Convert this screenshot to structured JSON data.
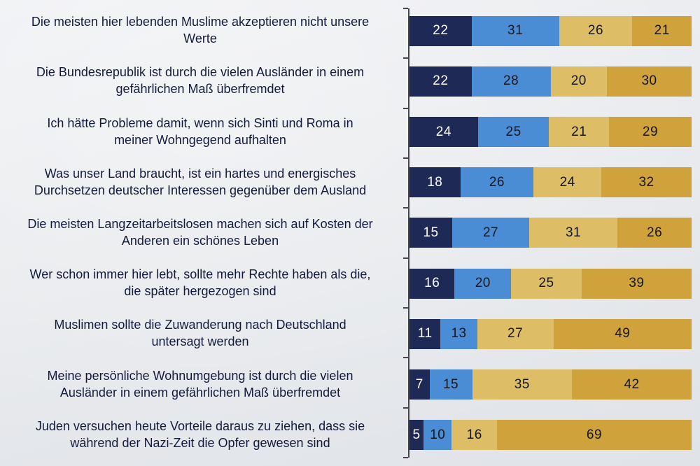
{
  "page": {
    "background": "#e8eaed",
    "label_text_color": "#141a3c",
    "axis_color": "#45454e"
  },
  "chart_data": {
    "type": "bar",
    "orientation": "horizontal",
    "stacked": true,
    "title": "",
    "xlabel": "",
    "ylabel": "",
    "xlim": [
      0,
      100
    ],
    "grid": false,
    "legend": "none",
    "value_labels": true,
    "categories": [
      "Die meisten hier lebenden Muslime akzeptieren nicht unsere\nWerte",
      "Die Bundesrepublik ist durch die vielen Ausländer in einem\ngefährlichen Maß überfremdet",
      "Ich hätte Probleme damit, wenn sich Sinti und Roma in\nmeiner Wohngegend aufhalten",
      "Was unser Land braucht, ist ein hartes und energisches\nDurchsetzen deutscher Interessen gegenüber dem Ausland",
      "Die meisten Langzeitarbeitslosen machen sich auf Kosten der\nAnderen ein schönes Leben",
      "Wer schon immer hier lebt, sollte mehr Rechte haben als die,\ndie später hergezogen sind",
      "Muslimen sollte die Zuwanderung nach Deutschland\nuntersagt werden",
      "Meine persönliche Wohnumgebung ist durch die vielen\nAusländer in einem gefährlichen Maß überfremdet",
      "Juden versuchen heute Vorteile daraus zu ziehen, dass sie\nwährend der Nazi-Zeit die Opfer gewesen sind"
    ],
    "series": [
      {
        "name": "series-1",
        "color": "#1f2956",
        "text_color": "#ffffff",
        "values": [
          22,
          22,
          24,
          18,
          15,
          16,
          11,
          7,
          5
        ]
      },
      {
        "name": "series-2",
        "color": "#4a8dd4",
        "text_color": "#15151d",
        "values": [
          31,
          28,
          25,
          26,
          27,
          20,
          13,
          15,
          10
        ]
      },
      {
        "name": "series-3",
        "color": "#ddbe66",
        "text_color": "#15151d",
        "values": [
          26,
          20,
          21,
          24,
          31,
          25,
          27,
          35,
          16
        ]
      },
      {
        "name": "series-4",
        "color": "#cfa23c",
        "text_color": "#15151d",
        "values": [
          21,
          30,
          29,
          32,
          26,
          39,
          49,
          42,
          69
        ]
      }
    ]
  }
}
